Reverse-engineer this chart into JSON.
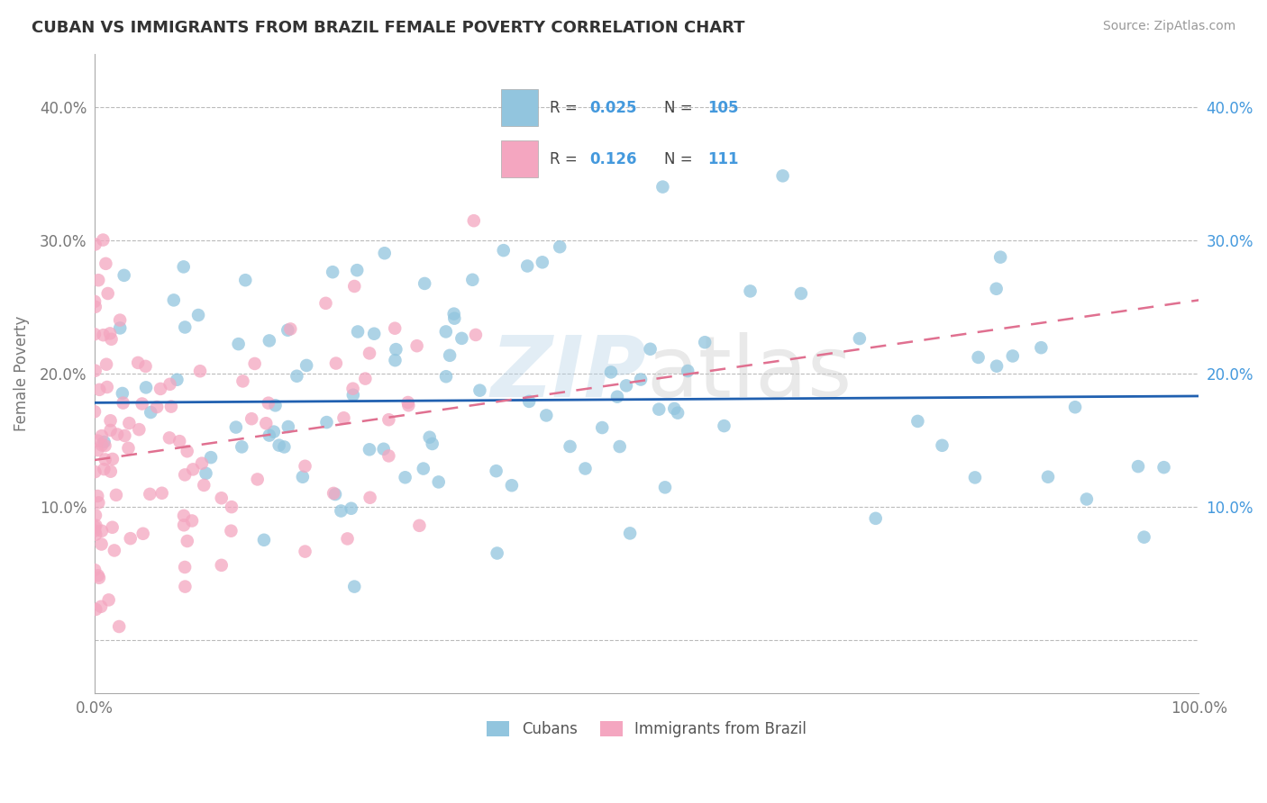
{
  "title": "CUBAN VS IMMIGRANTS FROM BRAZIL FEMALE POVERTY CORRELATION CHART",
  "source": "Source: ZipAtlas.com",
  "ylabel": "Female Poverty",
  "yticks": [
    0.0,
    0.1,
    0.2,
    0.3,
    0.4
  ],
  "ytick_labels_left": [
    "",
    "10.0%",
    "20.0%",
    "30.0%",
    "40.0%"
  ],
  "ytick_labels_right": [
    "",
    "10.0%",
    "20.0%",
    "30.0%",
    "40.0%"
  ],
  "xlim": [
    0.0,
    1.0
  ],
  "ylim": [
    -0.04,
    0.44
  ],
  "watermark": "ZIPatlas",
  "color_blue": "#92c5de",
  "color_pink": "#f4a6c0",
  "line_blue": "#2060b0",
  "line_pink": "#e07090",
  "blue_line_slope": 0.005,
  "blue_line_intercept": 0.178,
  "pink_line_slope": 0.12,
  "pink_line_intercept": 0.135,
  "legend_items": [
    {
      "color": "#92c5de",
      "R": "0.025",
      "N": "105"
    },
    {
      "color": "#f4a6c0",
      "R": "0.126",
      "N": "111"
    }
  ],
  "bottom_legend": [
    "Cubans",
    "Immigrants from Brazil"
  ]
}
